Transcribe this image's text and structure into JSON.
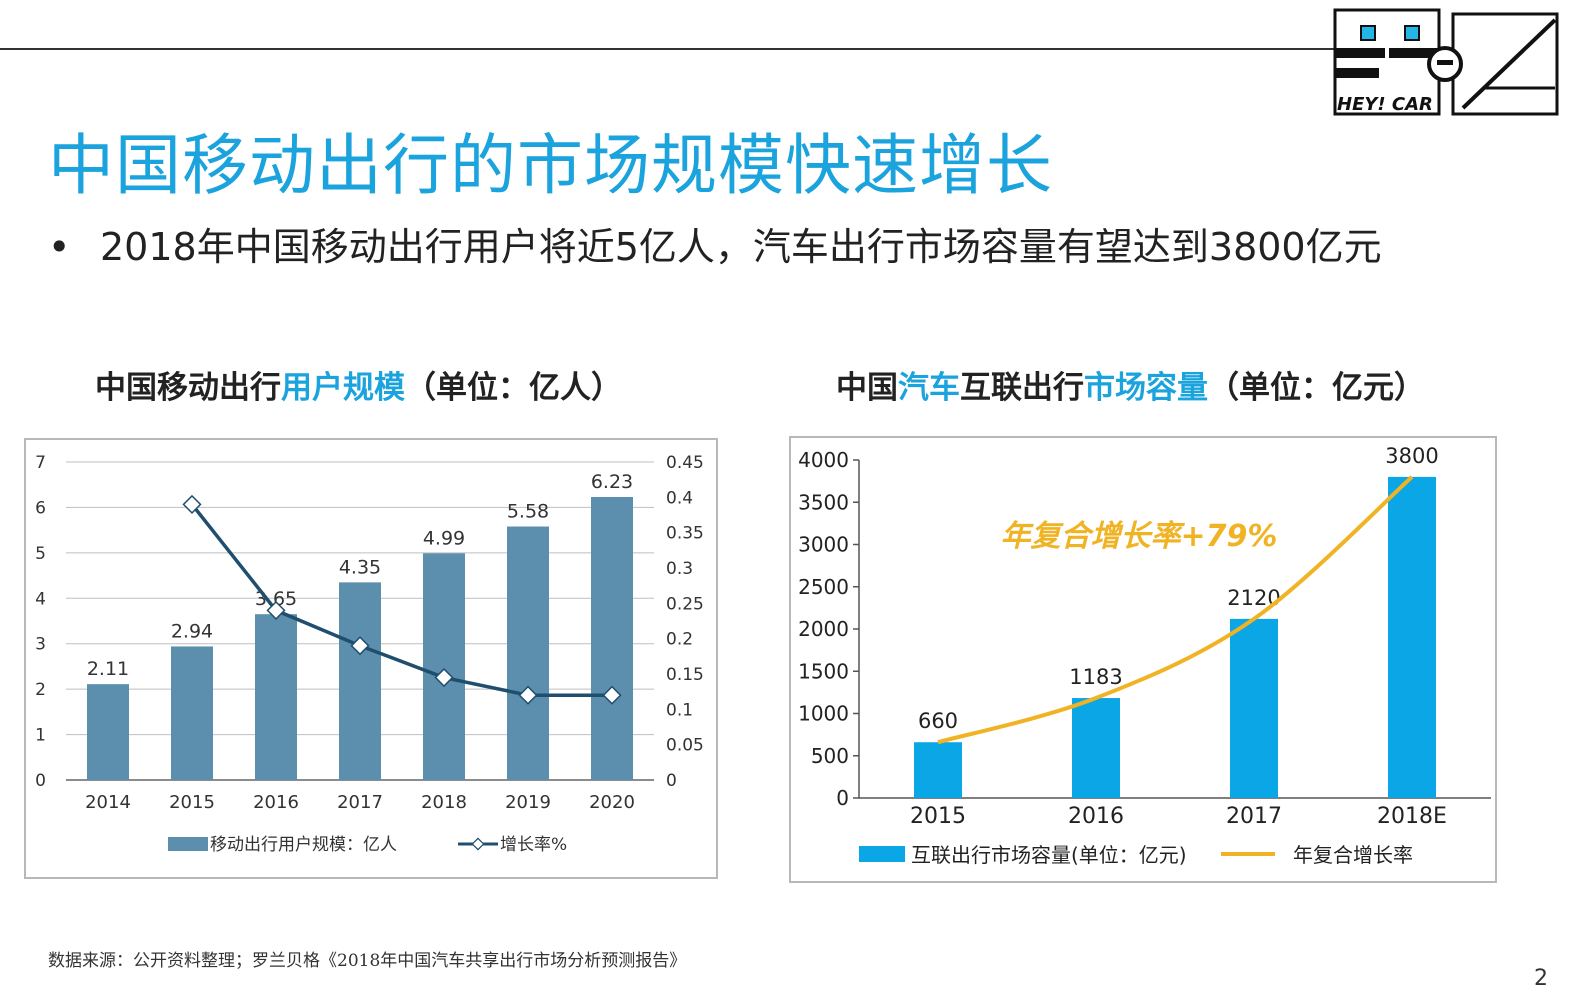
{
  "page": {
    "title": "中国移动出行的市场规模快速增长",
    "bullet_mark": "•",
    "bullet": "2018年中国移动出行用户将近5亿人，汽车出行市场容量有望达到3800亿元",
    "source": "数据来源：公开资料整理；罗兰贝格《2018年中国汽车共享出行市场分析预测报告》",
    "page_number": "2",
    "logo_text": "HEY! CAR"
  },
  "chart_titles": {
    "left": {
      "part1": "中国移动出行",
      "part2": "用户规模",
      "part3": "（单位：亿人）"
    },
    "right": {
      "part1": "中国",
      "part2": "汽车",
      "part3": "互联出行",
      "part4": "市场容量",
      "part5": "（单位：亿元）"
    }
  },
  "colors": {
    "accent": "#1aa3dc",
    "bar_left": "#5b8fad",
    "line_left": "#1f4e6e",
    "bar_right": "#0aa6e6",
    "line_right": "#f0b323"
  },
  "chart_data": [
    {
      "type": "bar",
      "title": "中国移动出行用户规模（单位：亿人）",
      "categories": [
        "2014",
        "2015",
        "2016",
        "2017",
        "2018",
        "2019",
        "2020"
      ],
      "series": [
        {
          "name": "移动出行用户规模：亿人",
          "values": [
            2.11,
            2.94,
            3.65,
            4.35,
            4.99,
            5.58,
            6.23
          ],
          "axis": "left"
        },
        {
          "name": "增长率%",
          "type": "line",
          "values": [
            null,
            0.39,
            0.24,
            0.19,
            0.145,
            0.12,
            0.12
          ],
          "axis": "right"
        }
      ],
      "data_labels": [
        "2.11",
        "2.94",
        "3.65",
        "4.35",
        "4.99",
        "5.58",
        "6.23"
      ],
      "ylim": [
        0,
        7
      ],
      "yticks": [
        "0",
        "1",
        "2",
        "3",
        "4",
        "5",
        "6",
        "7"
      ],
      "y2lim": [
        0,
        0.45
      ],
      "y2ticks": [
        "0",
        "0.05",
        "0.1",
        "0.15",
        "0.2",
        "0.25",
        "0.3",
        "0.35",
        "0.4",
        "0.45"
      ],
      "grid": true,
      "legend": "bottom"
    },
    {
      "type": "bar",
      "title": "中国汽车互联出行市场容量（单位：亿元）",
      "categories": [
        "2015",
        "2016",
        "2017",
        "2018E"
      ],
      "series": [
        {
          "name": "互联出行市场容量(单位：亿元)",
          "values": [
            660,
            1183,
            2120,
            3800
          ]
        },
        {
          "name": "年复合增长率",
          "type": "line",
          "values": [
            660,
            1183,
            2120,
            3800
          ]
        }
      ],
      "data_labels": [
        "660",
        "1183",
        "2120",
        "3800"
      ],
      "annotation": "年复合增长率+79%",
      "ylim": [
        0,
        4000
      ],
      "yticks": [
        "0",
        "500",
        "1000",
        "1500",
        "2000",
        "2500",
        "3000",
        "3500",
        "4000"
      ],
      "grid": false,
      "legend": "bottom"
    }
  ]
}
